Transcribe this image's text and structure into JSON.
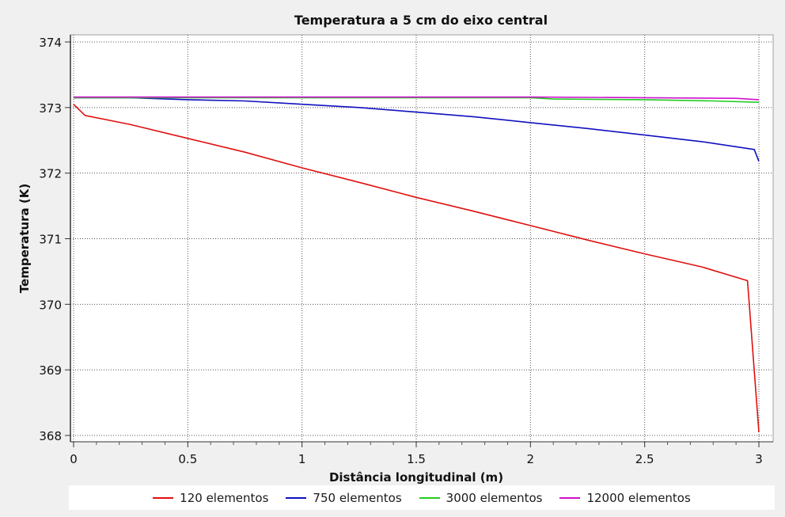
{
  "chart_data": {
    "type": "line",
    "title": "Temperatura a 5 cm do eixo central",
    "xlabel": "Distância longitudinal (m)",
    "ylabel": "Temperatura (K)",
    "xlim": [
      0,
      3
    ],
    "ylim": [
      368,
      374
    ],
    "xticks": [
      0,
      0.5,
      1,
      1.5,
      2,
      2.5,
      3
    ],
    "xtick_labels": [
      "0",
      "0.5",
      "1",
      "1.5",
      "2",
      "2.5",
      "3"
    ],
    "yticks": [
      368,
      369,
      370,
      371,
      372,
      373,
      374
    ],
    "ytick_labels": [
      "368",
      "369",
      "370",
      "371",
      "372",
      "373",
      "374"
    ],
    "grid": true,
    "legend_position": "bottom",
    "series": [
      {
        "name": "120 elementos",
        "color": "#e01010",
        "x": [
          0,
          0.05,
          0.25,
          0.5,
          0.75,
          1.0,
          1.25,
          1.5,
          1.75,
          2.0,
          2.25,
          2.5,
          2.75,
          2.95,
          3.0
        ],
        "y": [
          373.05,
          372.88,
          372.74,
          372.53,
          372.32,
          372.08,
          371.86,
          371.63,
          371.42,
          371.2,
          370.98,
          370.77,
          370.57,
          370.36,
          368.05
        ]
      },
      {
        "name": "750 elementos",
        "color": "#1010c0",
        "x": [
          0,
          0.25,
          0.5,
          0.75,
          1.0,
          1.25,
          1.5,
          1.75,
          2.0,
          2.25,
          2.5,
          2.75,
          2.98,
          3.0
        ],
        "y": [
          373.15,
          373.15,
          373.12,
          373.1,
          373.05,
          373.0,
          372.93,
          372.86,
          372.77,
          372.68,
          372.58,
          372.48,
          372.36,
          372.18
        ]
      },
      {
        "name": "3000 elementos",
        "color": "#22cc22",
        "x": [
          0,
          1.5,
          2.0,
          2.1,
          2.5,
          2.8,
          3.0
        ],
        "y": [
          373.15,
          373.15,
          373.15,
          373.13,
          373.12,
          373.1,
          373.08
        ]
      },
      {
        "name": "12000 elementos",
        "color": "#d010d0",
        "x": [
          0,
          1.0,
          2.0,
          2.5,
          2.9,
          3.0
        ],
        "y": [
          373.16,
          373.16,
          373.16,
          373.15,
          373.14,
          373.12
        ]
      }
    ]
  }
}
